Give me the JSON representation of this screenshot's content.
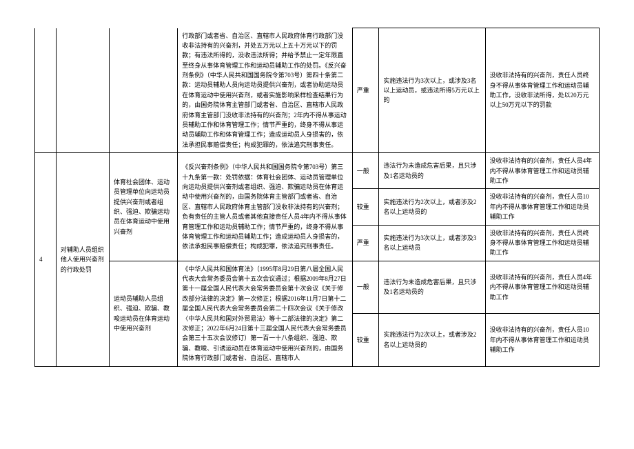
{
  "row_top": {
    "basis": "行政部门或者省、自治区、直辖市人民政府体育行政部门没收非法持有的兴奋剂，并处五万元以上五十万元以下的罚款；有违法所得的，没收违法所得；并给予禁止一定年限直至终身从事体育管理工作和运动员辅助工作的处罚。《反兴奋剂条例》（中华人民共和国国务院令第703号）第四十条第二款：运动员辅助人员向运动员提供兴奋剂，或者协助运动员在体育运动中使用兴奋剂，或者实施影响采样检查结果行为的，由国务院体育主管部门或者省、自治区、直辖市人民政府体育主管部门没收非法持有的兴奋剂；2年内不得从事运动员辅助工作和体育管理工作；情节严重的，终身不得从事运动员辅助工作和体育管理工作；造成运动员人身损害的，依法承担民事赔偿责任；构成犯罪的，依法追究刑事责任。",
    "level": "严重",
    "cond": "实施违法行为3次以上，或涉及3名以上运动员，或违法所得5万元以上的",
    "result": "没收非法持有的兴奋剂，责任人员终身不得从事体育管理工作和运动员辅助工作，没收非法所得，处以20万元以上50万元以下的罚款"
  },
  "item4": {
    "num": "4",
    "title": "对辅助人员组织他人使用兴奋剂的行政处罚",
    "group1": {
      "sub": "体育社会团体、运动员管理单位向运动员提供兴奋剂或者组织、强迫、欺骗运动员在体育运动中使用兴奋剂",
      "basis": "《反兴奋剂条例》（中华人民共和国国务院令第703号）第三十九条第一款：处罚依据：体育社会团体、运动员管理单位向运动员提供兴奋剂或者组织、强迫、欺骗运动员在体育运动中使用兴奋剂的，由国务院体育主管部门或者省、自治区、直辖市人民政府体育主管部门没收非法持有的兴奋剂；负有责任的主管人员或者其他直接责任人员4年内不得从事体育管理工作和运动员辅助工作；情节严重的，终身不得从事体育管理工作和运动员辅助工作；造成运动员人身损害的，依法承担民事赔偿责任；构成犯罪，依法追究刑事责任。",
      "r1": {
        "level": "一般",
        "cond": "违法行为未造成危害后果，且只涉及1名运动员的",
        "result": "没收非法持有的兴奋剂，责任人员4年内不得从事体育管理工作和运动员辅助工作"
      },
      "r2": {
        "level": "较重",
        "cond": "实施违法行为2次以上，或者涉及2名以上运动员的",
        "result": "没收非法持有的兴奋剂，责任人员10年内不得从事体育管理工作和运动员辅助工作"
      },
      "r3": {
        "level": "严重",
        "cond": "实施违法行为3次以上，或者涉及3名以上运动员",
        "result": "没收非法持有的兴奋剂，责任人员终身不得从事体育管理工作和运动员辅助工作"
      }
    },
    "group2": {
      "sub": "运动员辅助人员组织、强迫、欺骗、教唆运动员在体育运动中使用兴奋剂",
      "basis": "《中华人民共和国体育法》（1995年8月29日第八届全国人民代表大会常务委员会第十五次会议通过；根据2009年8月27日第十一届全国人民代表大会常务委员会第十次会议《关于修改部分法律的决定》第一次修正；根据2016年11月7日第十二届全国人民代表大会常务委员会第二十四次会议《关于修改〈中华人民共和国对外贸易法〉等十二部法律的决定》第二次修正；2022年6月24日第十三届全国人民代表大会常务委员会第三十五次会议修订）第一百一十八条组织、强迫、欺骗、教唆、引诱运动员在体育运动中使用兴奋剂的，由国务院体育行政部门或者省、自治区、直辖市人",
      "r1": {
        "level": "一般",
        "cond": "违法行为未造成危害后果，且只涉及1名运动员的",
        "result": "没收非法持有的兴奋剂，责任人员4年内不得从事体育管理工作和运动员辅助工作"
      },
      "r2": {
        "level": "较重",
        "cond": "实施违法行为2次以上，或者涉及2名以上运动员的",
        "result": "没收非法持有的兴奋剂，责任人员10年内不得从事体育管理工作和运动员辅助工作"
      }
    }
  }
}
